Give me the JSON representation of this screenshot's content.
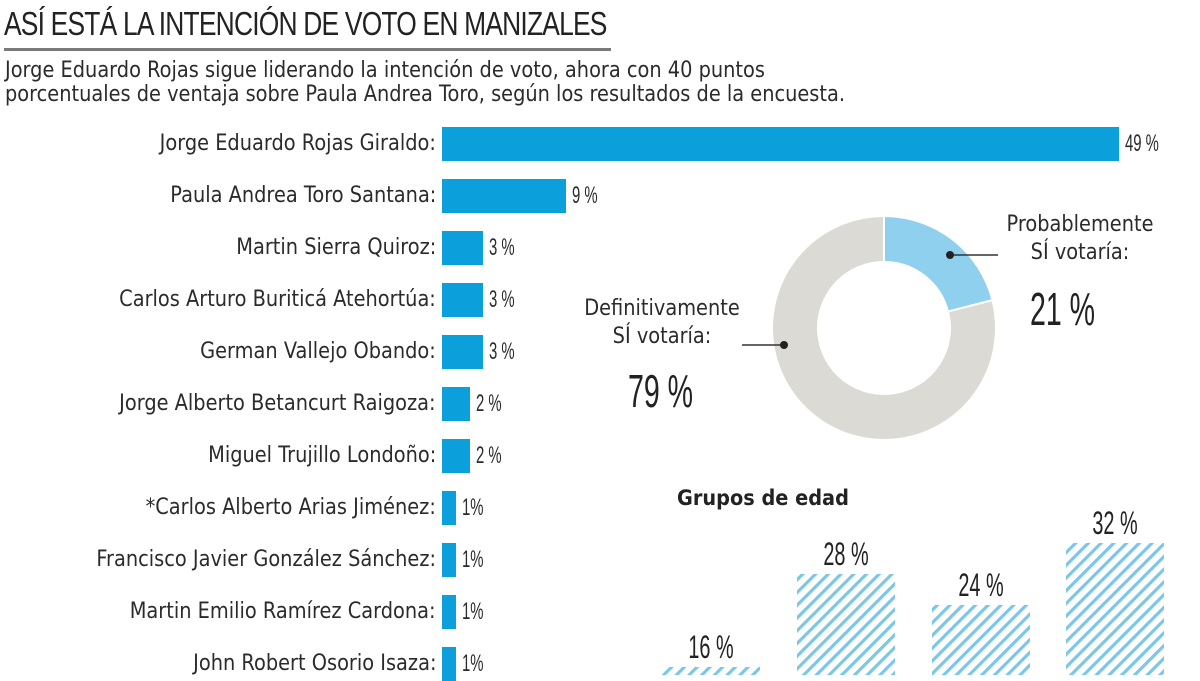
{
  "header": {
    "title": "ASÍ ESTÁ LA INTENCIÓN DE VOTO EN MANIZALES",
    "subtitle_line1": "Jorge Eduardo Rojas sigue liderando la intención de voto, ahora con 40 puntos",
    "subtitle_line2": "porcentuales de ventaja sobre Paula Andrea Toro, según los resultados de la encuesta."
  },
  "colors": {
    "bar": "#0b9fdc",
    "donut_definitely": "#dcdad5",
    "donut_probably": "#8fd0ef",
    "hatch": "#7cc6e6",
    "text": "#2b2b2b"
  },
  "chart_data": [
    {
      "type": "bar",
      "orientation": "horizontal",
      "title": "",
      "categories": [
        "Jorge Eduardo Rojas Giraldo:",
        "Paula Andrea Toro Santana:",
        "Martin Sierra Quiroz:",
        "Carlos Arturo Buriticá Atehortúa:",
        "German Vallejo Obando:",
        "Jorge Alberto Betancurt Raigoza:",
        "Miguel Trujillo Londoño:",
        "*Carlos Alberto Arias Jiménez:",
        "Francisco Javier González Sánchez:",
        "Martin Emilio Ramírez Cardona:",
        "John Robert Osorio Isaza:"
      ],
      "values": [
        49,
        9,
        3,
        3,
        3,
        2,
        2,
        1,
        1,
        1,
        1
      ],
      "value_labels": [
        "49 %",
        "9 %",
        "3 %",
        "3 %",
        "3 %",
        "2 %",
        "2 %",
        "1%",
        "1%",
        "1%",
        "1%"
      ],
      "xlim": [
        0,
        49
      ],
      "grid": false
    },
    {
      "type": "pie",
      "style": "donut",
      "slices": [
        {
          "label_line1": "Probablemente",
          "label_line2": "SÍ votaría:",
          "value": 21,
          "value_label": "21 %"
        },
        {
          "label_line1": "Definitivamente",
          "label_line2": "SÍ votaría:",
          "value": 79,
          "value_label": "79 %"
        }
      ]
    },
    {
      "type": "bar",
      "orientation": "vertical",
      "title": "Grupos de edad",
      "categories": [
        "",
        "",
        "",
        ""
      ],
      "values": [
        16,
        28,
        24,
        32
      ],
      "value_labels": [
        "16 %",
        "28 %",
        "24 %",
        "32 %"
      ],
      "grid": false
    }
  ]
}
